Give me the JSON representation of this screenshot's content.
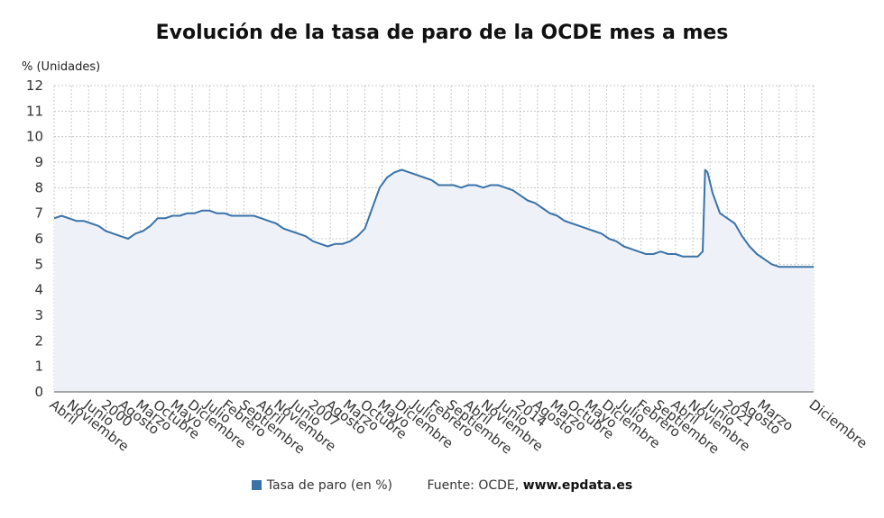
{
  "chart_data": {
    "type": "area",
    "title": "Evolución de la tasa de paro de la OCDE mes a mes",
    "ylabel": "% (Unidades)",
    "ylim": [
      0,
      12
    ],
    "yticks": [
      0,
      1,
      2,
      3,
      4,
      5,
      6,
      7,
      8,
      9,
      10,
      11,
      12
    ],
    "grid": true,
    "legend_position": "bottom",
    "line_color": "#3a73a8",
    "fill_color": "#eef2f8",
    "x_start": "1998-04",
    "x_end": "2023-12",
    "xtick_labels": [
      {
        "date": "1998-04",
        "label": "Abril"
      },
      {
        "date": "1998-11",
        "label": "Noviembre"
      },
      {
        "date": "1999-06",
        "label": "Junio"
      },
      {
        "date": "2000-01",
        "label": "2000"
      },
      {
        "date": "2000-08",
        "label": "Agosto"
      },
      {
        "date": "2001-03",
        "label": "Marzo"
      },
      {
        "date": "2001-10",
        "label": "Octubre"
      },
      {
        "date": "2002-05",
        "label": "Mayo"
      },
      {
        "date": "2002-12",
        "label": "Diciembre"
      },
      {
        "date": "2003-07",
        "label": "Julio"
      },
      {
        "date": "2004-02",
        "label": "Febrero"
      },
      {
        "date": "2004-09",
        "label": "Septiembre"
      },
      {
        "date": "2005-04",
        "label": "Abril"
      },
      {
        "date": "2005-11",
        "label": "Noviembre"
      },
      {
        "date": "2006-06",
        "label": "Junio"
      },
      {
        "date": "2007-01",
        "label": "2007"
      },
      {
        "date": "2007-08",
        "label": "Agosto"
      },
      {
        "date": "2008-03",
        "label": "Marzo"
      },
      {
        "date": "2008-10",
        "label": "Octubre"
      },
      {
        "date": "2009-05",
        "label": "Mayo"
      },
      {
        "date": "2009-12",
        "label": "Diciembre"
      },
      {
        "date": "2010-07",
        "label": "Julio"
      },
      {
        "date": "2011-02",
        "label": "Febrero"
      },
      {
        "date": "2011-09",
        "label": "Septiembre"
      },
      {
        "date": "2012-04",
        "label": "Abril"
      },
      {
        "date": "2012-11",
        "label": "Noviembre"
      },
      {
        "date": "2013-06",
        "label": "Junio"
      },
      {
        "date": "2014-01",
        "label": "2014"
      },
      {
        "date": "2014-08",
        "label": "Agosto"
      },
      {
        "date": "2015-03",
        "label": "Marzo"
      },
      {
        "date": "2015-10",
        "label": "Octubre"
      },
      {
        "date": "2016-05",
        "label": "Mayo"
      },
      {
        "date": "2016-12",
        "label": "Diciembre"
      },
      {
        "date": "2017-07",
        "label": "Julio"
      },
      {
        "date": "2018-02",
        "label": "Febrero"
      },
      {
        "date": "2018-09",
        "label": "Septiembre"
      },
      {
        "date": "2019-04",
        "label": "Abril"
      },
      {
        "date": "2019-11",
        "label": "Noviembre"
      },
      {
        "date": "2020-06",
        "label": "Junio"
      },
      {
        "date": "2021-01",
        "label": "2021"
      },
      {
        "date": "2021-08",
        "label": "Agosto"
      },
      {
        "date": "2022-03",
        "label": "Marzo"
      },
      {
        "date": "2022-10",
        "label": ""
      },
      {
        "date": "2023-05",
        "label": ""
      },
      {
        "date": "2023-12",
        "label": "Diciembre"
      }
    ],
    "series": [
      {
        "name": "Tasa de paro (en %)",
        "points": [
          [
            "1998-04",
            6.8
          ],
          [
            "1998-07",
            6.9
          ],
          [
            "1998-10",
            6.8
          ],
          [
            "1999-01",
            6.7
          ],
          [
            "1999-04",
            6.7
          ],
          [
            "1999-07",
            6.6
          ],
          [
            "1999-10",
            6.5
          ],
          [
            "2000-01",
            6.3
          ],
          [
            "2000-04",
            6.2
          ],
          [
            "2000-07",
            6.1
          ],
          [
            "2000-10",
            6.0
          ],
          [
            "2001-01",
            6.2
          ],
          [
            "2001-04",
            6.3
          ],
          [
            "2001-07",
            6.5
          ],
          [
            "2001-10",
            6.8
          ],
          [
            "2002-01",
            6.8
          ],
          [
            "2002-04",
            6.9
          ],
          [
            "2002-07",
            6.9
          ],
          [
            "2002-10",
            7.0
          ],
          [
            "2003-01",
            7.0
          ],
          [
            "2003-04",
            7.1
          ],
          [
            "2003-07",
            7.1
          ],
          [
            "2003-10",
            7.0
          ],
          [
            "2004-01",
            7.0
          ],
          [
            "2004-04",
            6.9
          ],
          [
            "2004-07",
            6.9
          ],
          [
            "2004-10",
            6.9
          ],
          [
            "2005-01",
            6.9
          ],
          [
            "2005-04",
            6.8
          ],
          [
            "2005-07",
            6.7
          ],
          [
            "2005-10",
            6.6
          ],
          [
            "2006-01",
            6.4
          ],
          [
            "2006-04",
            6.3
          ],
          [
            "2006-07",
            6.2
          ],
          [
            "2006-10",
            6.1
          ],
          [
            "2007-01",
            5.9
          ],
          [
            "2007-04",
            5.8
          ],
          [
            "2007-07",
            5.7
          ],
          [
            "2007-10",
            5.8
          ],
          [
            "2008-01",
            5.8
          ],
          [
            "2008-04",
            5.9
          ],
          [
            "2008-07",
            6.1
          ],
          [
            "2008-10",
            6.4
          ],
          [
            "2009-01",
            7.2
          ],
          [
            "2009-04",
            8.0
          ],
          [
            "2009-07",
            8.4
          ],
          [
            "2009-10",
            8.6
          ],
          [
            "2010-01",
            8.7
          ],
          [
            "2010-04",
            8.6
          ],
          [
            "2010-07",
            8.5
          ],
          [
            "2010-10",
            8.4
          ],
          [
            "2011-01",
            8.3
          ],
          [
            "2011-04",
            8.1
          ],
          [
            "2011-07",
            8.1
          ],
          [
            "2011-10",
            8.1
          ],
          [
            "2012-01",
            8.0
          ],
          [
            "2012-04",
            8.1
          ],
          [
            "2012-07",
            8.1
          ],
          [
            "2012-10",
            8.0
          ],
          [
            "2013-01",
            8.1
          ],
          [
            "2013-04",
            8.1
          ],
          [
            "2013-07",
            8.0
          ],
          [
            "2013-10",
            7.9
          ],
          [
            "2014-01",
            7.7
          ],
          [
            "2014-04",
            7.5
          ],
          [
            "2014-07",
            7.4
          ],
          [
            "2014-10",
            7.2
          ],
          [
            "2015-01",
            7.0
          ],
          [
            "2015-04",
            6.9
          ],
          [
            "2015-07",
            6.7
          ],
          [
            "2015-10",
            6.6
          ],
          [
            "2016-01",
            6.5
          ],
          [
            "2016-04",
            6.4
          ],
          [
            "2016-07",
            6.3
          ],
          [
            "2016-10",
            6.2
          ],
          [
            "2017-01",
            6.0
          ],
          [
            "2017-04",
            5.9
          ],
          [
            "2017-07",
            5.7
          ],
          [
            "2017-10",
            5.6
          ],
          [
            "2018-01",
            5.5
          ],
          [
            "2018-04",
            5.4
          ],
          [
            "2018-07",
            5.4
          ],
          [
            "2018-10",
            5.5
          ],
          [
            "2019-01",
            5.4
          ],
          [
            "2019-04",
            5.4
          ],
          [
            "2019-07",
            5.3
          ],
          [
            "2019-10",
            5.3
          ],
          [
            "2020-01",
            5.3
          ],
          [
            "2020-03",
            5.5
          ],
          [
            "2020-04",
            8.7
          ],
          [
            "2020-05",
            8.6
          ],
          [
            "2020-07",
            7.8
          ],
          [
            "2020-10",
            7.0
          ],
          [
            "2021-01",
            6.8
          ],
          [
            "2021-04",
            6.6
          ],
          [
            "2021-07",
            6.1
          ],
          [
            "2021-10",
            5.7
          ],
          [
            "2022-01",
            5.4
          ],
          [
            "2022-04",
            5.2
          ],
          [
            "2022-07",
            5.0
          ],
          [
            "2022-10",
            4.9
          ],
          [
            "2023-01",
            4.9
          ],
          [
            "2023-04",
            4.9
          ],
          [
            "2023-07",
            4.9
          ],
          [
            "2023-12",
            4.9
          ]
        ]
      }
    ]
  },
  "legend": {
    "series_label": "Tasa de paro (en %)",
    "source_prefix": "Fuente: OCDE, ",
    "source_site": "www.epdata.es"
  }
}
